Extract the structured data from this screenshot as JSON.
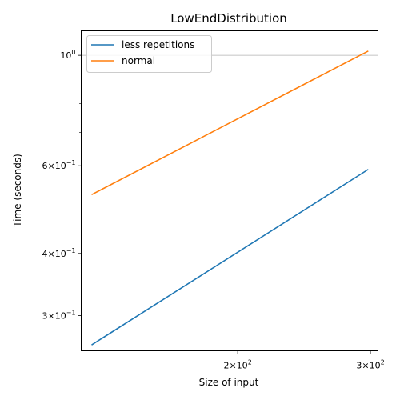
{
  "chart_data": {
    "type": "line",
    "title": "LowEndDistribution",
    "xlabel": "Size of input",
    "ylabel": "Time (seconds)",
    "xscale": "log",
    "yscale": "log",
    "xlim": [
      124,
      307
    ],
    "ylim": [
      0.255,
      1.12
    ],
    "grid": "y-major only",
    "legend_position": "top-left",
    "x_ticks": [
      {
        "value": 200,
        "base": "2",
        "sup": "2"
      },
      {
        "value": 300,
        "base": "3",
        "sup": "2"
      }
    ],
    "y_ticks": [
      {
        "value": 1.0,
        "base": "10",
        "sup": "0"
      },
      {
        "value": 0.6,
        "base": "6",
        "sup": "−1"
      },
      {
        "value": 0.4,
        "base": "4",
        "sup": "−1"
      },
      {
        "value": 0.3,
        "base": "3",
        "sup": "−1"
      }
    ],
    "y_minor_ticks": [
      0.7,
      0.8,
      0.9
    ],
    "tick_mult": "×10",
    "series": [
      {
        "name": "less repetitions",
        "color": "#1f77b4",
        "x": [
          128,
          298
        ],
        "y": [
          0.262,
          0.59
        ]
      },
      {
        "name": "normal",
        "color": "#ff7f0e",
        "x": [
          128,
          298
        ],
        "y": [
          0.525,
          1.02
        ]
      }
    ]
  }
}
